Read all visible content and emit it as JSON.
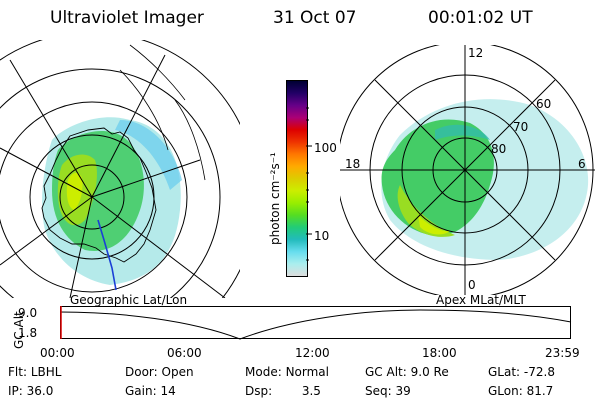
{
  "header": {
    "title": "Ultraviolet Imager",
    "date": "31 Oct 07",
    "time": "00:01:02 UT"
  },
  "left_panel": {
    "label": "Geographic Lat/Lon"
  },
  "colorbar": {
    "unit_label": "photon cm⁻²s⁻¹",
    "ticks": [
      "100",
      "10"
    ],
    "scale": "log",
    "colors": [
      "#000033",
      "#220066",
      "#660088",
      "#aa0077",
      "#dd0000",
      "#ee3300",
      "#ff7700",
      "#ffaa00",
      "#ddcc00",
      "#ccee00",
      "#99ee00",
      "#55dd22",
      "#22cc77",
      "#22bbbb",
      "#66ddee",
      "#aaeeee",
      "#dddddd"
    ]
  },
  "right_panel": {
    "label": "Apex MLat/MLT",
    "mlt_labels": {
      "top": "12",
      "left": "18",
      "right": "6",
      "bottom": "0"
    },
    "lat_labels": [
      "60",
      "70",
      "80"
    ]
  },
  "timeline": {
    "ylabel": "GC Alt",
    "yticks": [
      "9.0",
      "1.8"
    ],
    "xticks": [
      "00:00",
      "06:00",
      "12:00",
      "18:00",
      "23:59"
    ],
    "progress": 0.0007
  },
  "info": {
    "flt_label": "Flt:",
    "flt_value": "LBHL",
    "ip_label": "IP:",
    "ip_value": "36.0",
    "door_label": "Door:",
    "door_value": "Open",
    "gain_label": "Gain:",
    "gain_value": "14",
    "mode_label": "Mode:",
    "mode_value": "Normal",
    "dsp_label": "Dsp:",
    "dsp_value": "3.5",
    "gcalt_label": "GC Alt:",
    "gcalt_value": "9.0 Re",
    "seq_label": "Seq:",
    "seq_value": "39",
    "glat_label": "GLat:",
    "glat_value": "-72.8",
    "glon_label": "GLon:",
    "glon_value": "81.7"
  }
}
